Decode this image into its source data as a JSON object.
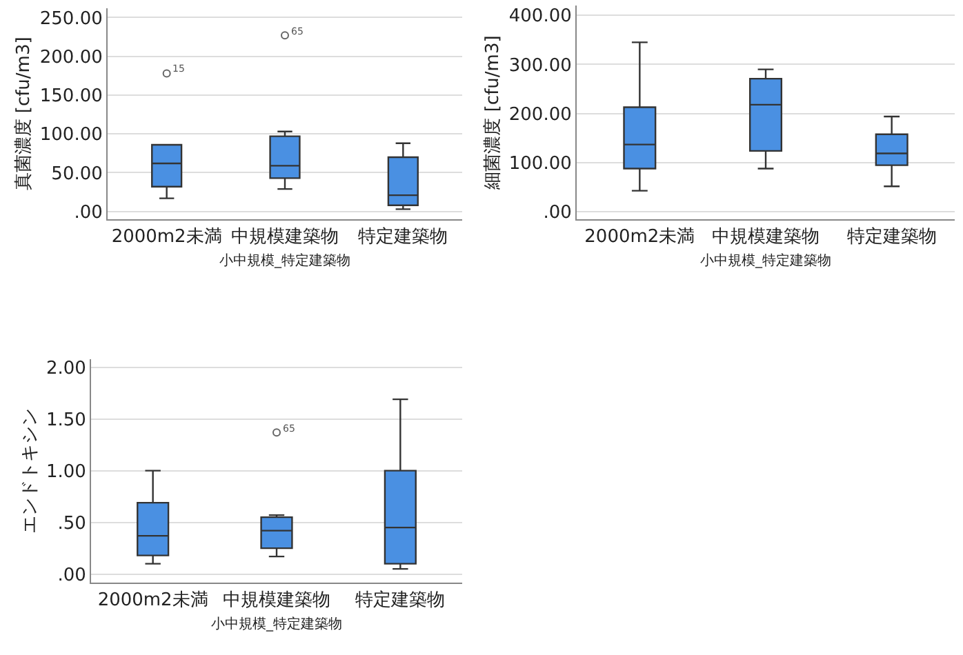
{
  "chart_data": [
    {
      "type": "box",
      "categories": [
        "2000m2未満",
        "中規模建築物",
        "特定建築物"
      ],
      "xlabel": "小中規模_特定建築物",
      "ylabel": "真菌濃度 [cfu/m3]",
      "ylim": [
        -10,
        262
      ],
      "yticks": [
        {
          "value": 0,
          "label": ".00"
        },
        {
          "value": 50,
          "label": "50.00"
        },
        {
          "value": 100,
          "label": "100.00"
        },
        {
          "value": 150,
          "label": "150.00"
        },
        {
          "value": 200,
          "label": "200.00"
        },
        {
          "value": 250,
          "label": "250.00"
        }
      ],
      "grid": "y",
      "color": "#4a90e2",
      "boxes": [
        {
          "low": 17,
          "q1": 32,
          "median": 62,
          "q3": 86,
          "high": 86,
          "outliers": [
            178
          ]
        },
        {
          "low": 29,
          "q1": 43,
          "median": 59,
          "q3": 97,
          "high": 103,
          "outliers": [
            227
          ]
        },
        {
          "low": 3,
          "q1": 8,
          "median": 21,
          "q3": 70,
          "high": 88
        }
      ],
      "annotations": [
        "15",
        "65"
      ]
    },
    {
      "type": "box",
      "categories": [
        "2000m2未満",
        "中規模建築物",
        "特定建築物"
      ],
      "xlabel": "小中規模_特定建築物",
      "ylabel": "細菌濃度 [cfu/m3]",
      "ylim": [
        -15,
        420
      ],
      "yticks": [
        {
          "value": 0,
          "label": ".00"
        },
        {
          "value": 100,
          "label": "100.00"
        },
        {
          "value": 200,
          "label": "200.00"
        },
        {
          "value": 300,
          "label": "300.00"
        },
        {
          "value": 400,
          "label": "400.00"
        }
      ],
      "grid": "y",
      "color": "#4a90e2",
      "boxes": [
        {
          "low": 43,
          "q1": 88,
          "median": 137,
          "q3": 213,
          "high": 345
        },
        {
          "low": 88,
          "q1": 124,
          "median": 218,
          "q3": 271,
          "high": 290
        },
        {
          "low": 52,
          "q1": 95,
          "median": 119,
          "q3": 158,
          "high": 194
        }
      ]
    },
    {
      "type": "box",
      "categories": [
        "2000m2未満",
        "中規模建築物",
        "特定建築物"
      ],
      "xlabel": "小中規模_特定建築物",
      "ylabel": "エンドトキシン",
      "ylim": [
        -0.08,
        2.08
      ],
      "yticks": [
        {
          "value": 0,
          "label": ".00"
        },
        {
          "value": 0.5,
          "label": ".50"
        },
        {
          "value": 1,
          "label": "1.00"
        },
        {
          "value": 1.5,
          "label": "1.50"
        },
        {
          "value": 2,
          "label": "2.00"
        }
      ],
      "grid": "y",
      "color": "#4a90e2",
      "boxes": [
        {
          "low": 0.1,
          "q1": 0.18,
          "median": 0.37,
          "q3": 0.69,
          "high": 1.0
        },
        {
          "low": 0.17,
          "q1": 0.25,
          "median": 0.42,
          "q3": 0.55,
          "high": 0.57,
          "outliers": [
            1.37
          ]
        },
        {
          "low": 0.05,
          "q1": 0.1,
          "median": 0.45,
          "q3": 1.0,
          "high": 1.69
        }
      ],
      "annotations": [
        "65"
      ]
    }
  ]
}
